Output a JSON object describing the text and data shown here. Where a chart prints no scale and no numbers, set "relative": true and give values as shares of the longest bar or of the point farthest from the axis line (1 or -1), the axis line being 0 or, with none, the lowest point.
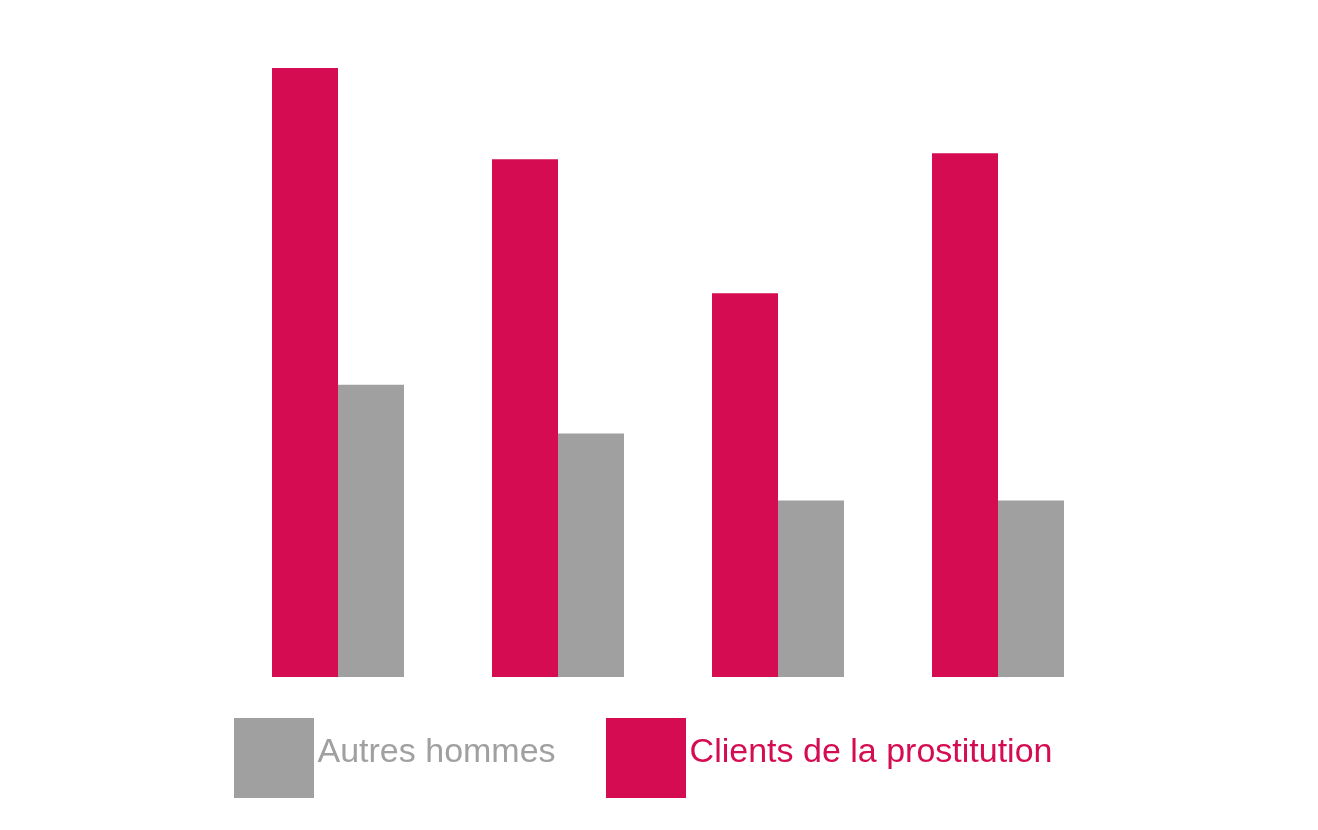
{
  "chart_data": {
    "type": "bar",
    "relative": true,
    "categories": [
      null,
      null,
      null,
      null
    ],
    "series": [
      {
        "name": "Clients de la prostitution",
        "color": "#d60c52",
        "values": [
          1,
          0.85,
          0.63,
          0.86
        ]
      },
      {
        "name": "Autres hommes",
        "color": "#a0a0a0",
        "values": [
          0.48,
          0.4,
          0.29,
          0.29
        ]
      }
    ],
    "legend": "bottom"
  }
}
